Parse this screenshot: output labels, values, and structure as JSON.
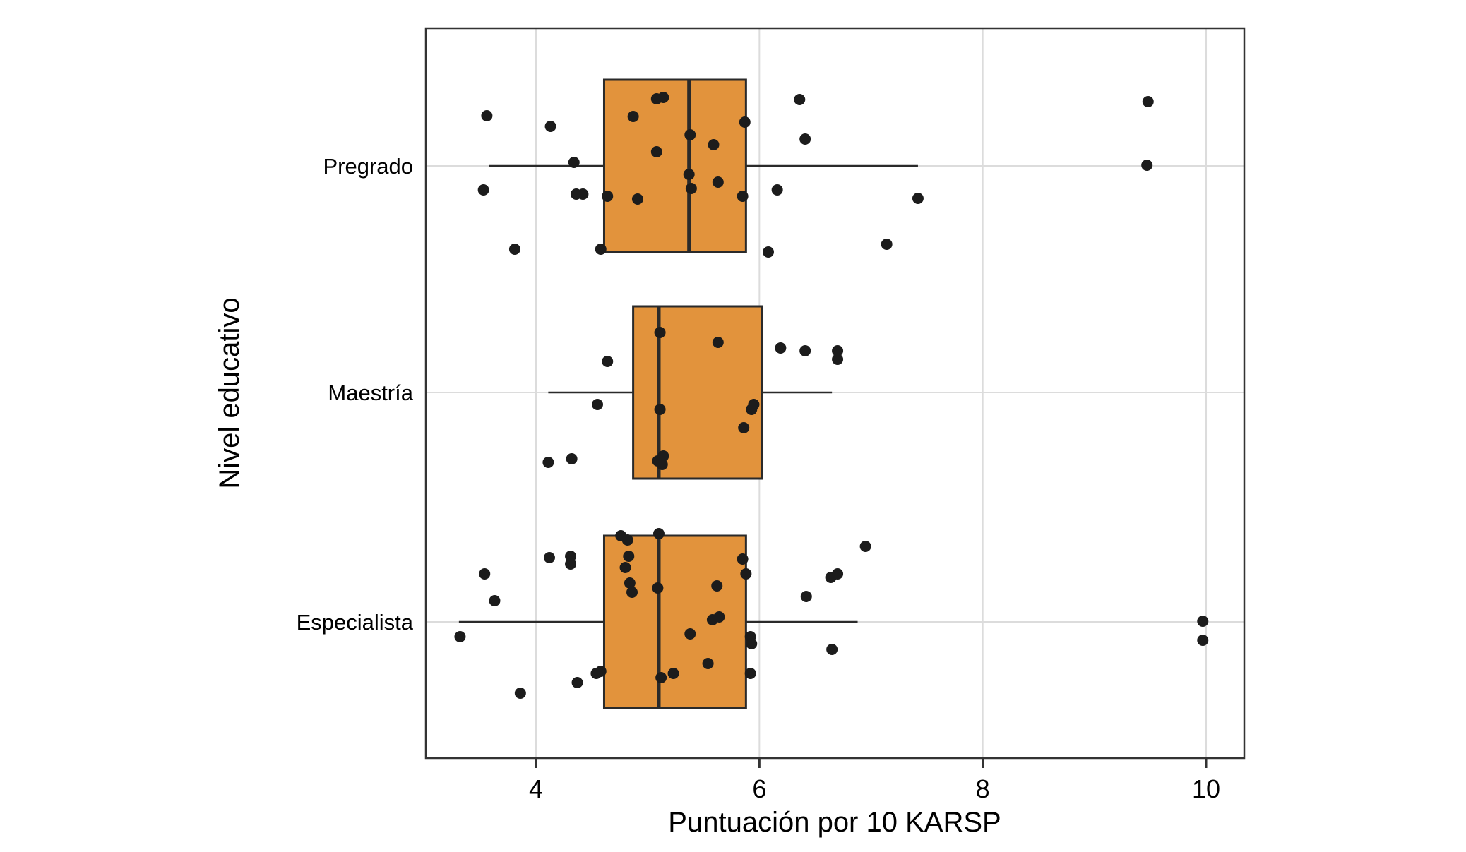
{
  "chart_data": {
    "type": "boxplot",
    "orientation": "horizontal",
    "title": "",
    "xlabel": "Puntuación por 10 KARSP",
    "ylabel": "Nivel educativo",
    "xlim": [
      3.0,
      10.35
    ],
    "xticks": [
      4,
      6,
      8,
      10
    ],
    "grid": true,
    "legend": "none",
    "colors": {
      "box_fill": "#E2933C",
      "box_stroke": "#2A2A2A",
      "median_stroke": "#2A2A2A",
      "whisker_stroke": "#2A2A2A",
      "point_fill": "#1C1C1C",
      "grid_line": "#DCDCDC",
      "panel_border": "#333333",
      "text": "#000000",
      "background": "#FFFFFF"
    },
    "groups": [
      {
        "label": "Pregrado",
        "q1": 4.61,
        "median": 5.37,
        "q3": 5.88,
        "whisker_low": 3.58,
        "whisker_high": 7.42,
        "points": [
          [
            6.36,
            -94
          ],
          [
            9.48,
            -91
          ],
          [
            3.56,
            -71
          ],
          [
            4.87,
            -70
          ],
          [
            5.08,
            -95
          ],
          [
            5.14,
            -97
          ],
          [
            4.13,
            -56
          ],
          [
            5.87,
            -62
          ],
          [
            5.38,
            -44
          ],
          [
            6.41,
            -38
          ],
          [
            5.08,
            -20
          ],
          [
            5.59,
            -30
          ],
          [
            9.47,
            -1
          ],
          [
            4.34,
            -5
          ],
          [
            5.37,
            12
          ],
          [
            5.63,
            23
          ],
          [
            3.53,
            34
          ],
          [
            4.36,
            40
          ],
          [
            4.42,
            40
          ],
          [
            4.64,
            43
          ],
          [
            4.91,
            47
          ],
          [
            5.39,
            32
          ],
          [
            5.85,
            43
          ],
          [
            6.16,
            34
          ],
          [
            7.42,
            46
          ],
          [
            3.81,
            118
          ],
          [
            4.58,
            118
          ],
          [
            6.08,
            122
          ],
          [
            7.14,
            111
          ]
        ]
      },
      {
        "label": "Maestría",
        "q1": 4.87,
        "median": 5.1,
        "q3": 6.02,
        "whisker_low": 4.11,
        "whisker_high": 6.65,
        "points": [
          [
            5.63,
            -71
          ],
          [
            6.19,
            -63
          ],
          [
            6.41,
            -59
          ],
          [
            6.7,
            -59
          ],
          [
            6.7,
            -47
          ],
          [
            5.11,
            -85
          ],
          [
            4.64,
            -44
          ],
          [
            4.55,
            17
          ],
          [
            5.11,
            24
          ],
          [
            5.93,
            24
          ],
          [
            5.95,
            17
          ],
          [
            5.86,
            50
          ],
          [
            4.11,
            99
          ],
          [
            4.32,
            94
          ],
          [
            5.09,
            97
          ],
          [
            5.13,
            102
          ],
          [
            5.14,
            90
          ]
        ]
      },
      {
        "label": "Especialista",
        "q1": 4.61,
        "median": 5.1,
        "q3": 5.88,
        "whisker_low": 3.31,
        "whisker_high": 6.88,
        "points": [
          [
            4.76,
            -122
          ],
          [
            4.82,
            -116
          ],
          [
            5.1,
            -125
          ],
          [
            6.95,
            -107
          ],
          [
            4.12,
            -91
          ],
          [
            4.31,
            -93
          ],
          [
            4.31,
            -82
          ],
          [
            4.83,
            -93
          ],
          [
            4.8,
            -77
          ],
          [
            5.85,
            -89
          ],
          [
            6.64,
            -63
          ],
          [
            6.7,
            -68
          ],
          [
            3.54,
            -68
          ],
          [
            4.84,
            -55
          ],
          [
            4.86,
            -42
          ],
          [
            5.09,
            -48
          ],
          [
            5.62,
            -51
          ],
          [
            5.88,
            -68
          ],
          [
            6.42,
            -36
          ],
          [
            3.63,
            -30
          ],
          [
            5.58,
            -3
          ],
          [
            5.64,
            -7
          ],
          [
            9.97,
            -1
          ],
          [
            3.32,
            21
          ],
          [
            5.38,
            17
          ],
          [
            5.92,
            21
          ],
          [
            5.93,
            31
          ],
          [
            6.65,
            39
          ],
          [
            9.97,
            26
          ],
          [
            5.54,
            59
          ],
          [
            5.23,
            73
          ],
          [
            5.92,
            73
          ],
          [
            4.37,
            86
          ],
          [
            4.54,
            73
          ],
          [
            4.58,
            70
          ],
          [
            5.12,
            79
          ],
          [
            3.86,
            101
          ]
        ]
      }
    ]
  }
}
